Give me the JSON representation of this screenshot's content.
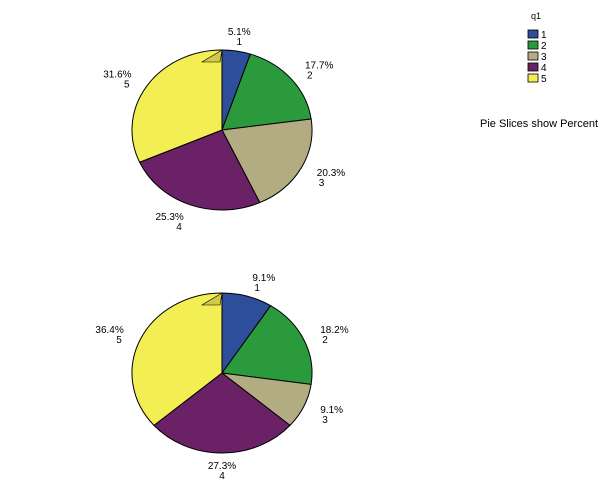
{
  "chart_data": [
    {
      "type": "pie",
      "style": "3d",
      "categories": [
        "1",
        "2",
        "3",
        "4",
        "5"
      ],
      "values": [
        5.1,
        17.7,
        20.3,
        25.3,
        31.6
      ],
      "labels": [
        "5.1%",
        "17.7%",
        "20.3%",
        "25.3%",
        "31.6%"
      ]
    },
    {
      "type": "pie",
      "style": "3d",
      "categories": [
        "1",
        "2",
        "3",
        "4",
        "5"
      ],
      "values": [
        9.1,
        18.2,
        9.1,
        27.3,
        36.4
      ],
      "labels": [
        "9.1%",
        "18.2%",
        "9.1%",
        "27.3%",
        "36.4%"
      ]
    }
  ],
  "legend": {
    "title": "q1",
    "items": [
      "1",
      "2",
      "3",
      "4",
      "5"
    ],
    "colors": [
      "#2e4d9a",
      "#2a9a3c",
      "#b3ac83",
      "#6b2166",
      "#f4ee55"
    ],
    "position": "top-right"
  },
  "note": "Pie Slices show Percent"
}
